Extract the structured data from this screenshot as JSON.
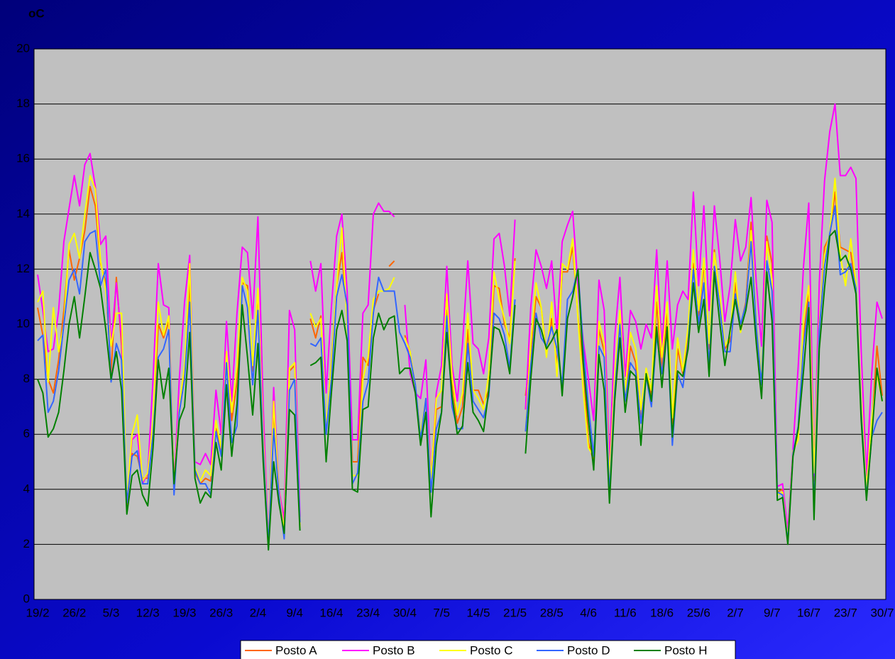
{
  "chart_data": {
    "type": "line",
    "y_label": "oC",
    "categories": [
      "19/2",
      null,
      null,
      null,
      null,
      null,
      null,
      "26/2",
      null,
      null,
      null,
      null,
      null,
      null,
      "5/3",
      null,
      null,
      null,
      null,
      null,
      null,
      "12/3",
      null,
      null,
      null,
      null,
      null,
      null,
      "19/3",
      null,
      null,
      null,
      null,
      null,
      null,
      "26/3",
      null,
      null,
      null,
      null,
      null,
      null,
      "2/4",
      null,
      null,
      null,
      null,
      null,
      null,
      "9/4",
      null,
      null,
      null,
      null,
      null,
      null,
      "16/4",
      null,
      null,
      null,
      null,
      null,
      null,
      "23/4",
      null,
      null,
      null,
      null,
      null,
      null,
      "30/4",
      null,
      null,
      null,
      null,
      null,
      null,
      "7/5",
      null,
      null,
      null,
      null,
      null,
      null,
      "14/5",
      null,
      null,
      null,
      null,
      null,
      null,
      "21/5",
      null,
      null,
      null,
      null,
      null,
      null,
      "28/5",
      null,
      null,
      null,
      null,
      null,
      null,
      "4/6",
      null,
      null,
      null,
      null,
      null,
      null,
      "11/6",
      null,
      null,
      null,
      null,
      null,
      null,
      "18/6",
      null,
      null,
      null,
      null,
      null,
      null,
      "25/6",
      null,
      null,
      null,
      null,
      null,
      null,
      "2/7",
      null,
      null,
      null,
      null,
      null,
      null,
      "9/7",
      null,
      null,
      null,
      null,
      null,
      null,
      "16/7",
      null,
      null,
      null,
      null,
      null,
      null,
      "23/7",
      null,
      null,
      null,
      null,
      null,
      null,
      "30/7"
    ],
    "series": [
      {
        "name": "Posto A",
        "color": "#ff6600",
        "values": [
          10.6,
          9.6,
          8,
          7.5,
          8.7,
          10.5,
          12.7,
          11.6,
          12.4,
          13.4,
          15,
          14.3,
          12.2,
          11.5,
          8.2,
          11.7,
          9.2,
          3.4,
          5.3,
          5.2,
          4.4,
          4.4,
          6.2,
          10,
          9.5,
          10.1,
          4,
          7,
          8.3,
          11.6,
          4.6,
          4.2,
          4.4,
          4.3,
          6.2,
          5.4,
          8.7,
          6.5,
          7.9,
          11.5,
          11.4,
          8.3,
          11.2,
          5.8,
          2,
          6.9,
          3.9,
          2.5,
          8.3,
          8.5,
          2.7,
          null,
          10.2,
          9.5,
          10.3,
          6,
          8.6,
          11.4,
          12.6,
          10.3,
          5,
          5,
          8.8,
          8.5,
          10.5,
          11.1,
          null,
          12.1,
          12.3,
          null,
          9.6,
          9,
          7.7,
          6,
          7.2,
          4.4,
          6.9,
          7,
          10.5,
          7.9,
          6.4,
          7,
          9.8,
          7.6,
          7.6,
          7.1,
          7.6,
          11.4,
          11.3,
          10,
          9.5,
          12.4,
          null,
          7.4,
          9,
          11,
          10.6,
          8.9,
          10.2,
          8.5,
          11.9,
          11.9,
          12.8,
          10.3,
          8.5,
          5.7,
          5,
          9.8,
          9,
          4.2,
          7.8,
          10.2,
          7.2,
          9.2,
          8.6,
          6.5,
          8.2,
          7.4,
          10.8,
          8.3,
          10.5,
          6.4,
          9.1,
          8.2,
          9.5,
          12.2,
          10.3,
          12.2,
          9.1,
          12.7,
          11,
          9.1,
          9.4,
          11.5,
          9.9,
          10.8,
          13.7,
          9.8,
          7.8,
          13.2,
          12.2,
          3.9,
          4,
          2.2,
          5.3,
          6.1,
          9.5,
          11.2,
          4.3,
          9.8,
          12.8,
          13.2,
          14.8,
          12.8,
          12.7,
          12.6,
          11.4,
          7,
          4,
          6.2,
          9.2,
          7.4
        ]
      },
      {
        "name": "Posto B",
        "color": "#ff00ff",
        "values": [
          11.8,
          10.5,
          9,
          9.1,
          10.5,
          13,
          14.2,
          15.4,
          14.3,
          15.8,
          16.2,
          15,
          12.9,
          13.2,
          9.2,
          11.5,
          9.5,
          3.5,
          5.8,
          6,
          4.2,
          4.6,
          8,
          12.2,
          10.7,
          10.6,
          4.1,
          8,
          10.8,
          12.5,
          5,
          4.9,
          5.3,
          4.9,
          7.6,
          6,
          10.1,
          7.2,
          10.4,
          12.8,
          12.6,
          10.2,
          13.9,
          7,
          2,
          7.7,
          4,
          2.9,
          10.5,
          9.8,
          3,
          null,
          12.3,
          11.2,
          12.2,
          7.5,
          10.6,
          13.2,
          14,
          11.2,
          5.8,
          5.8,
          10.4,
          10.7,
          14,
          14.4,
          14.1,
          14.1,
          13.9,
          null,
          10.7,
          8.2,
          7.5,
          7.3,
          8.7,
          4.4,
          7.5,
          8.5,
          12.1,
          8.5,
          7.2,
          9.3,
          12.3,
          9.3,
          9.1,
          8.2,
          9.5,
          13.1,
          13.3,
          12.1,
          10.3,
          13.8,
          null,
          6.9,
          10.6,
          12.7,
          12.1,
          11.3,
          12.3,
          9.7,
          13,
          13.6,
          14.1,
          11.4,
          9.4,
          8,
          6.5,
          11.6,
          10.5,
          5,
          9.5,
          11.7,
          8.1,
          10.5,
          10.1,
          9.1,
          10,
          9.5,
          12.7,
          9.1,
          12.3,
          9.1,
          10.7,
          11.2,
          10.9,
          14.8,
          11.4,
          14.3,
          10.5,
          14.3,
          12.4,
          10.1,
          11.4,
          13.8,
          12.3,
          12.8,
          14.6,
          11.5,
          9.2,
          14.5,
          13.7,
          4.1,
          4.2,
          2.5,
          5.5,
          8.5,
          12.1,
          14.4,
          4.5,
          11.5,
          15.2,
          17,
          18,
          15.4,
          15.4,
          15.7,
          15.3,
          9,
          4.5,
          8.2,
          10.8,
          10.2
        ]
      },
      {
        "name": "Posto C",
        "color": "#ffff00",
        "values": [
          10.8,
          11.2,
          7.9,
          10.6,
          9,
          10,
          12.9,
          13.3,
          12.4,
          14,
          15.4,
          14.9,
          12.3,
          11.2,
          9.2,
          10.4,
          10.4,
          3.6,
          6,
          6.7,
          4.3,
          4.6,
          6.5,
          10.8,
          9.6,
          10.3,
          4.1,
          7,
          8.5,
          12.2,
          4.8,
          4.3,
          4.7,
          4.5,
          6.5,
          5.5,
          9,
          6.8,
          8.5,
          11.7,
          11.2,
          8.5,
          11.3,
          6,
          2,
          7.2,
          3.9,
          2.5,
          8.4,
          8.6,
          2.6,
          null,
          10.4,
          9.9,
          10.2,
          6.2,
          8.5,
          11.4,
          13.5,
          10,
          4.5,
          4.5,
          8,
          8.8,
          10.9,
          11.2,
          11.2,
          11.3,
          11.7,
          null,
          9.5,
          9,
          7.7,
          6,
          7.3,
          4.4,
          7.3,
          7.6,
          11.1,
          8.1,
          6.7,
          7.5,
          10.4,
          7.6,
          7.3,
          6.9,
          8.2,
          11.9,
          10.9,
          10.2,
          9.3,
          12.3,
          null,
          6.1,
          9.3,
          11.5,
          10.6,
          8.8,
          10.8,
          8.1,
          12.2,
          12,
          13.1,
          10.2,
          7.6,
          5.5,
          5.2,
          10.1,
          9.3,
          4.4,
          8.1,
          10.5,
          7.5,
          9.7,
          9.1,
          6.9,
          8.4,
          7.6,
          11.4,
          8.8,
          10.8,
          6.6,
          9.5,
          8.3,
          9.9,
          12.7,
          10.5,
          12.4,
          9.3,
          12.6,
          11.1,
          9.2,
          9.6,
          11.9,
          9.7,
          10.6,
          13.4,
          10,
          8,
          13,
          11.6,
          3.8,
          3.9,
          2.2,
          5.4,
          5.8,
          10.2,
          11.4,
          4.6,
          10,
          12.5,
          13.3,
          15.3,
          12.5,
          11.4,
          13.1,
          11.5,
          7.3,
          4,
          6.5,
          8.2,
          7.2
        ]
      },
      {
        "name": "Posto D",
        "color": "#3366ff",
        "values": [
          9.4,
          9.6,
          6.8,
          7.2,
          8.3,
          10,
          11.6,
          12,
          11.1,
          13,
          13.3,
          13.4,
          11.4,
          12,
          7.9,
          9.3,
          8.7,
          3.5,
          5.2,
          5.4,
          4.2,
          4.2,
          6,
          8.8,
          9.1,
          9.8,
          3.8,
          6.8,
          8,
          10.8,
          4.7,
          4.2,
          4.2,
          3.8,
          6.1,
          5.2,
          8.6,
          5.7,
          6.3,
          11.4,
          10.6,
          7.8,
          10.5,
          5.5,
          2,
          6.2,
          3.8,
          2.2,
          7.6,
          8,
          2.8,
          null,
          9.3,
          9.2,
          9.5,
          6,
          8,
          11,
          11.8,
          10.7,
          4.2,
          4.6,
          7.2,
          7.9,
          10.4,
          11.7,
          11.2,
          11.2,
          11.2,
          9.7,
          9.3,
          8.8,
          7.8,
          5.8,
          7.3,
          3.9,
          6.2,
          6.8,
          10.3,
          7,
          6.2,
          6.2,
          9.3,
          7.2,
          6.9,
          6.6,
          7.4,
          10.4,
          10.2,
          9.6,
          8.4,
          10.9,
          null,
          6.1,
          8.5,
          10.4,
          9.5,
          9.2,
          9.9,
          9.1,
          7.8,
          10.9,
          11.2,
          12,
          9.2,
          7,
          5.2,
          9.2,
          8.8,
          3.8,
          7.5,
          10,
          7.2,
          8.6,
          8.3,
          6.4,
          8.1,
          7,
          9.6,
          8.2,
          9.8,
          5.6,
          8.2,
          7.7,
          9.3,
          12,
          10,
          11.5,
          8.5,
          12.1,
          10.7,
          9,
          9,
          11.1,
          10,
          10.7,
          13,
          9.9,
          7.8,
          12.3,
          11.2,
          3.9,
          3.8,
          2.1,
          5.3,
          6.3,
          9.2,
          10.8,
          3.2,
          9.8,
          12.1,
          13.3,
          14.3,
          11.8,
          11.9,
          12.2,
          11.3,
          6.8,
          3.7,
          5.9,
          6.5,
          6.8
        ]
      },
      {
        "name": "Posto H",
        "color": "#008000",
        "values": [
          8,
          7.5,
          5.9,
          6.2,
          6.8,
          8.3,
          10,
          11,
          9.5,
          11,
          12.6,
          12,
          11.3,
          9.8,
          8,
          9,
          7.6,
          3.1,
          4.5,
          4.7,
          3.8,
          3.4,
          5.5,
          8.7,
          7.3,
          8.4,
          4.2,
          6.5,
          7,
          9.7,
          4.4,
          3.5,
          3.9,
          3.7,
          5.7,
          4.7,
          7.8,
          5.2,
          7.1,
          10.7,
          8.8,
          6.7,
          9.3,
          5,
          1.8,
          5,
          3.5,
          2.4,
          6.9,
          6.7,
          2.5,
          null,
          8.5,
          8.6,
          8.8,
          5,
          7.5,
          9.8,
          10.5,
          9.4,
          4,
          3.9,
          6.9,
          7,
          9.5,
          10.4,
          9.8,
          10.2,
          10.3,
          8.2,
          8.4,
          8.4,
          7.5,
          5.6,
          6.8,
          3,
          5.6,
          6.8,
          9.7,
          7.4,
          6,
          6.3,
          8.6,
          6.8,
          6.5,
          6.1,
          7.6,
          9.9,
          9.8,
          9.2,
          8.2,
          10.7,
          null,
          5.3,
          8,
          10.2,
          9.8,
          9.1,
          9.4,
          9.8,
          7.4,
          10.2,
          11,
          12,
          8.6,
          6.5,
          4.7,
          8.9,
          7.6,
          3.5,
          7.2,
          9.5,
          6.8,
          8.3,
          8.1,
          5.6,
          8.2,
          7.2,
          9.9,
          7.7,
          9.9,
          5.9,
          8.3,
          8.1,
          9.1,
          11.5,
          9.7,
          10.9,
          8.1,
          11.9,
          10.1,
          8.5,
          9.8,
          10.9,
          9.8,
          10.5,
          11.7,
          9.3,
          7.3,
          11.9,
          10.1,
          3.6,
          3.7,
          2,
          5.2,
          6.2,
          8.3,
          10.6,
          2.9,
          9.1,
          11.3,
          13.2,
          13.4,
          12.3,
          12.5,
          12,
          11.1,
          6.5,
          3.6,
          5.9,
          8.4,
          7.2
        ]
      }
    ],
    "ylim": [
      0,
      20
    ],
    "yticks": [
      0,
      2,
      4,
      6,
      8,
      10,
      12,
      14,
      16,
      18,
      20
    ],
    "grid": true,
    "legend": "bottom"
  }
}
